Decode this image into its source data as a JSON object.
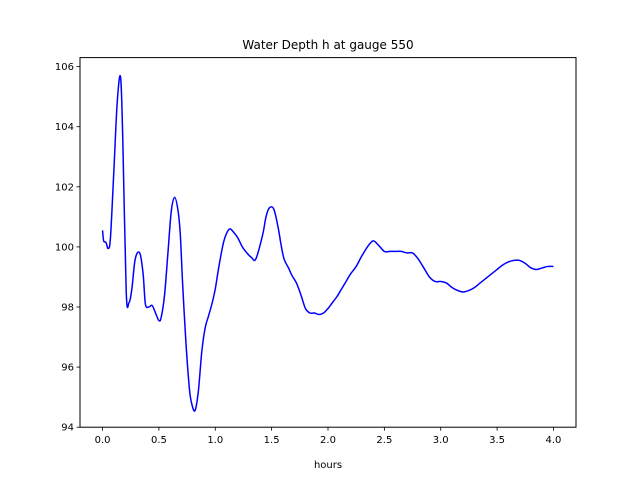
{
  "chart_data": {
    "type": "line",
    "title": "Water Depth h at gauge 550",
    "xlabel": "hours",
    "ylabel": "",
    "xlim": [
      -0.2,
      4.2
    ],
    "ylim": [
      94,
      106.3
    ],
    "xticks": [
      0.0,
      0.5,
      1.0,
      1.5,
      2.0,
      2.5,
      3.0,
      3.5,
      4.0
    ],
    "xtick_labels": [
      "0.0",
      "0.5",
      "1.0",
      "1.5",
      "2.0",
      "2.5",
      "3.0",
      "3.5",
      "4.0"
    ],
    "yticks": [
      94,
      96,
      98,
      100,
      102,
      104,
      106
    ],
    "ytick_labels": [
      "94",
      "96",
      "98",
      "100",
      "102",
      "104",
      "106"
    ],
    "grid": false,
    "series": [
      {
        "color": "#0000ff",
        "x": [
          0.0,
          0.01,
          0.03,
          0.05,
          0.07,
          0.1,
          0.13,
          0.16,
          0.18,
          0.21,
          0.235,
          0.26,
          0.29,
          0.33,
          0.36,
          0.38,
          0.41,
          0.44,
          0.47,
          0.5,
          0.52,
          0.55,
          0.58,
          0.61,
          0.64,
          0.67,
          0.69,
          0.71,
          0.74,
          0.77,
          0.79,
          0.82,
          0.85,
          0.88,
          0.91,
          0.94,
          0.97,
          1.0,
          1.03,
          1.07,
          1.1,
          1.13,
          1.16,
          1.2,
          1.24,
          1.28,
          1.32,
          1.36,
          1.42,
          1.45,
          1.48,
          1.52,
          1.56,
          1.58,
          1.61,
          1.65,
          1.68,
          1.72,
          1.76,
          1.8,
          1.84,
          1.88,
          1.92,
          1.96,
          2.0,
          2.04,
          2.08,
          2.12,
          2.16,
          2.2,
          2.25,
          2.3,
          2.35,
          2.4,
          2.45,
          2.5,
          2.55,
          2.6,
          2.65,
          2.7,
          2.75,
          2.8,
          2.85,
          2.9,
          2.95,
          3.0,
          3.05,
          3.1,
          3.15,
          3.2,
          3.25,
          3.3,
          3.35,
          3.4,
          3.45,
          3.5,
          3.55,
          3.6,
          3.65,
          3.7,
          3.75,
          3.8,
          3.85,
          3.9,
          3.95,
          4.0
        ],
        "y": [
          100.55,
          100.2,
          100.15,
          99.95,
          100.3,
          102.5,
          104.8,
          105.65,
          103.5,
          98.5,
          98.15,
          98.6,
          99.6,
          99.8,
          99.1,
          98.1,
          98.0,
          98.05,
          97.8,
          97.55,
          97.65,
          98.4,
          99.8,
          101.2,
          101.65,
          101.2,
          100.4,
          98.8,
          96.8,
          95.3,
          94.8,
          94.55,
          95.2,
          96.5,
          97.3,
          97.7,
          98.1,
          98.6,
          99.3,
          100.1,
          100.45,
          100.6,
          100.5,
          100.3,
          100.0,
          99.8,
          99.65,
          99.6,
          100.4,
          101.0,
          101.3,
          101.25,
          100.6,
          100.15,
          99.6,
          99.3,
          99.05,
          98.8,
          98.4,
          97.95,
          97.8,
          97.8,
          97.75,
          97.8,
          97.95,
          98.15,
          98.35,
          98.6,
          98.85,
          99.1,
          99.35,
          99.7,
          100.0,
          100.2,
          100.05,
          99.85,
          99.85,
          99.85,
          99.85,
          99.8,
          99.8,
          99.6,
          99.3,
          99.0,
          98.85,
          98.85,
          98.8,
          98.65,
          98.55,
          98.5,
          98.55,
          98.65,
          98.8,
          98.95,
          99.1,
          99.25,
          99.4,
          99.5,
          99.55,
          99.55,
          99.45,
          99.3,
          99.25,
          99.3,
          99.35,
          99.35
        ]
      }
    ]
  }
}
